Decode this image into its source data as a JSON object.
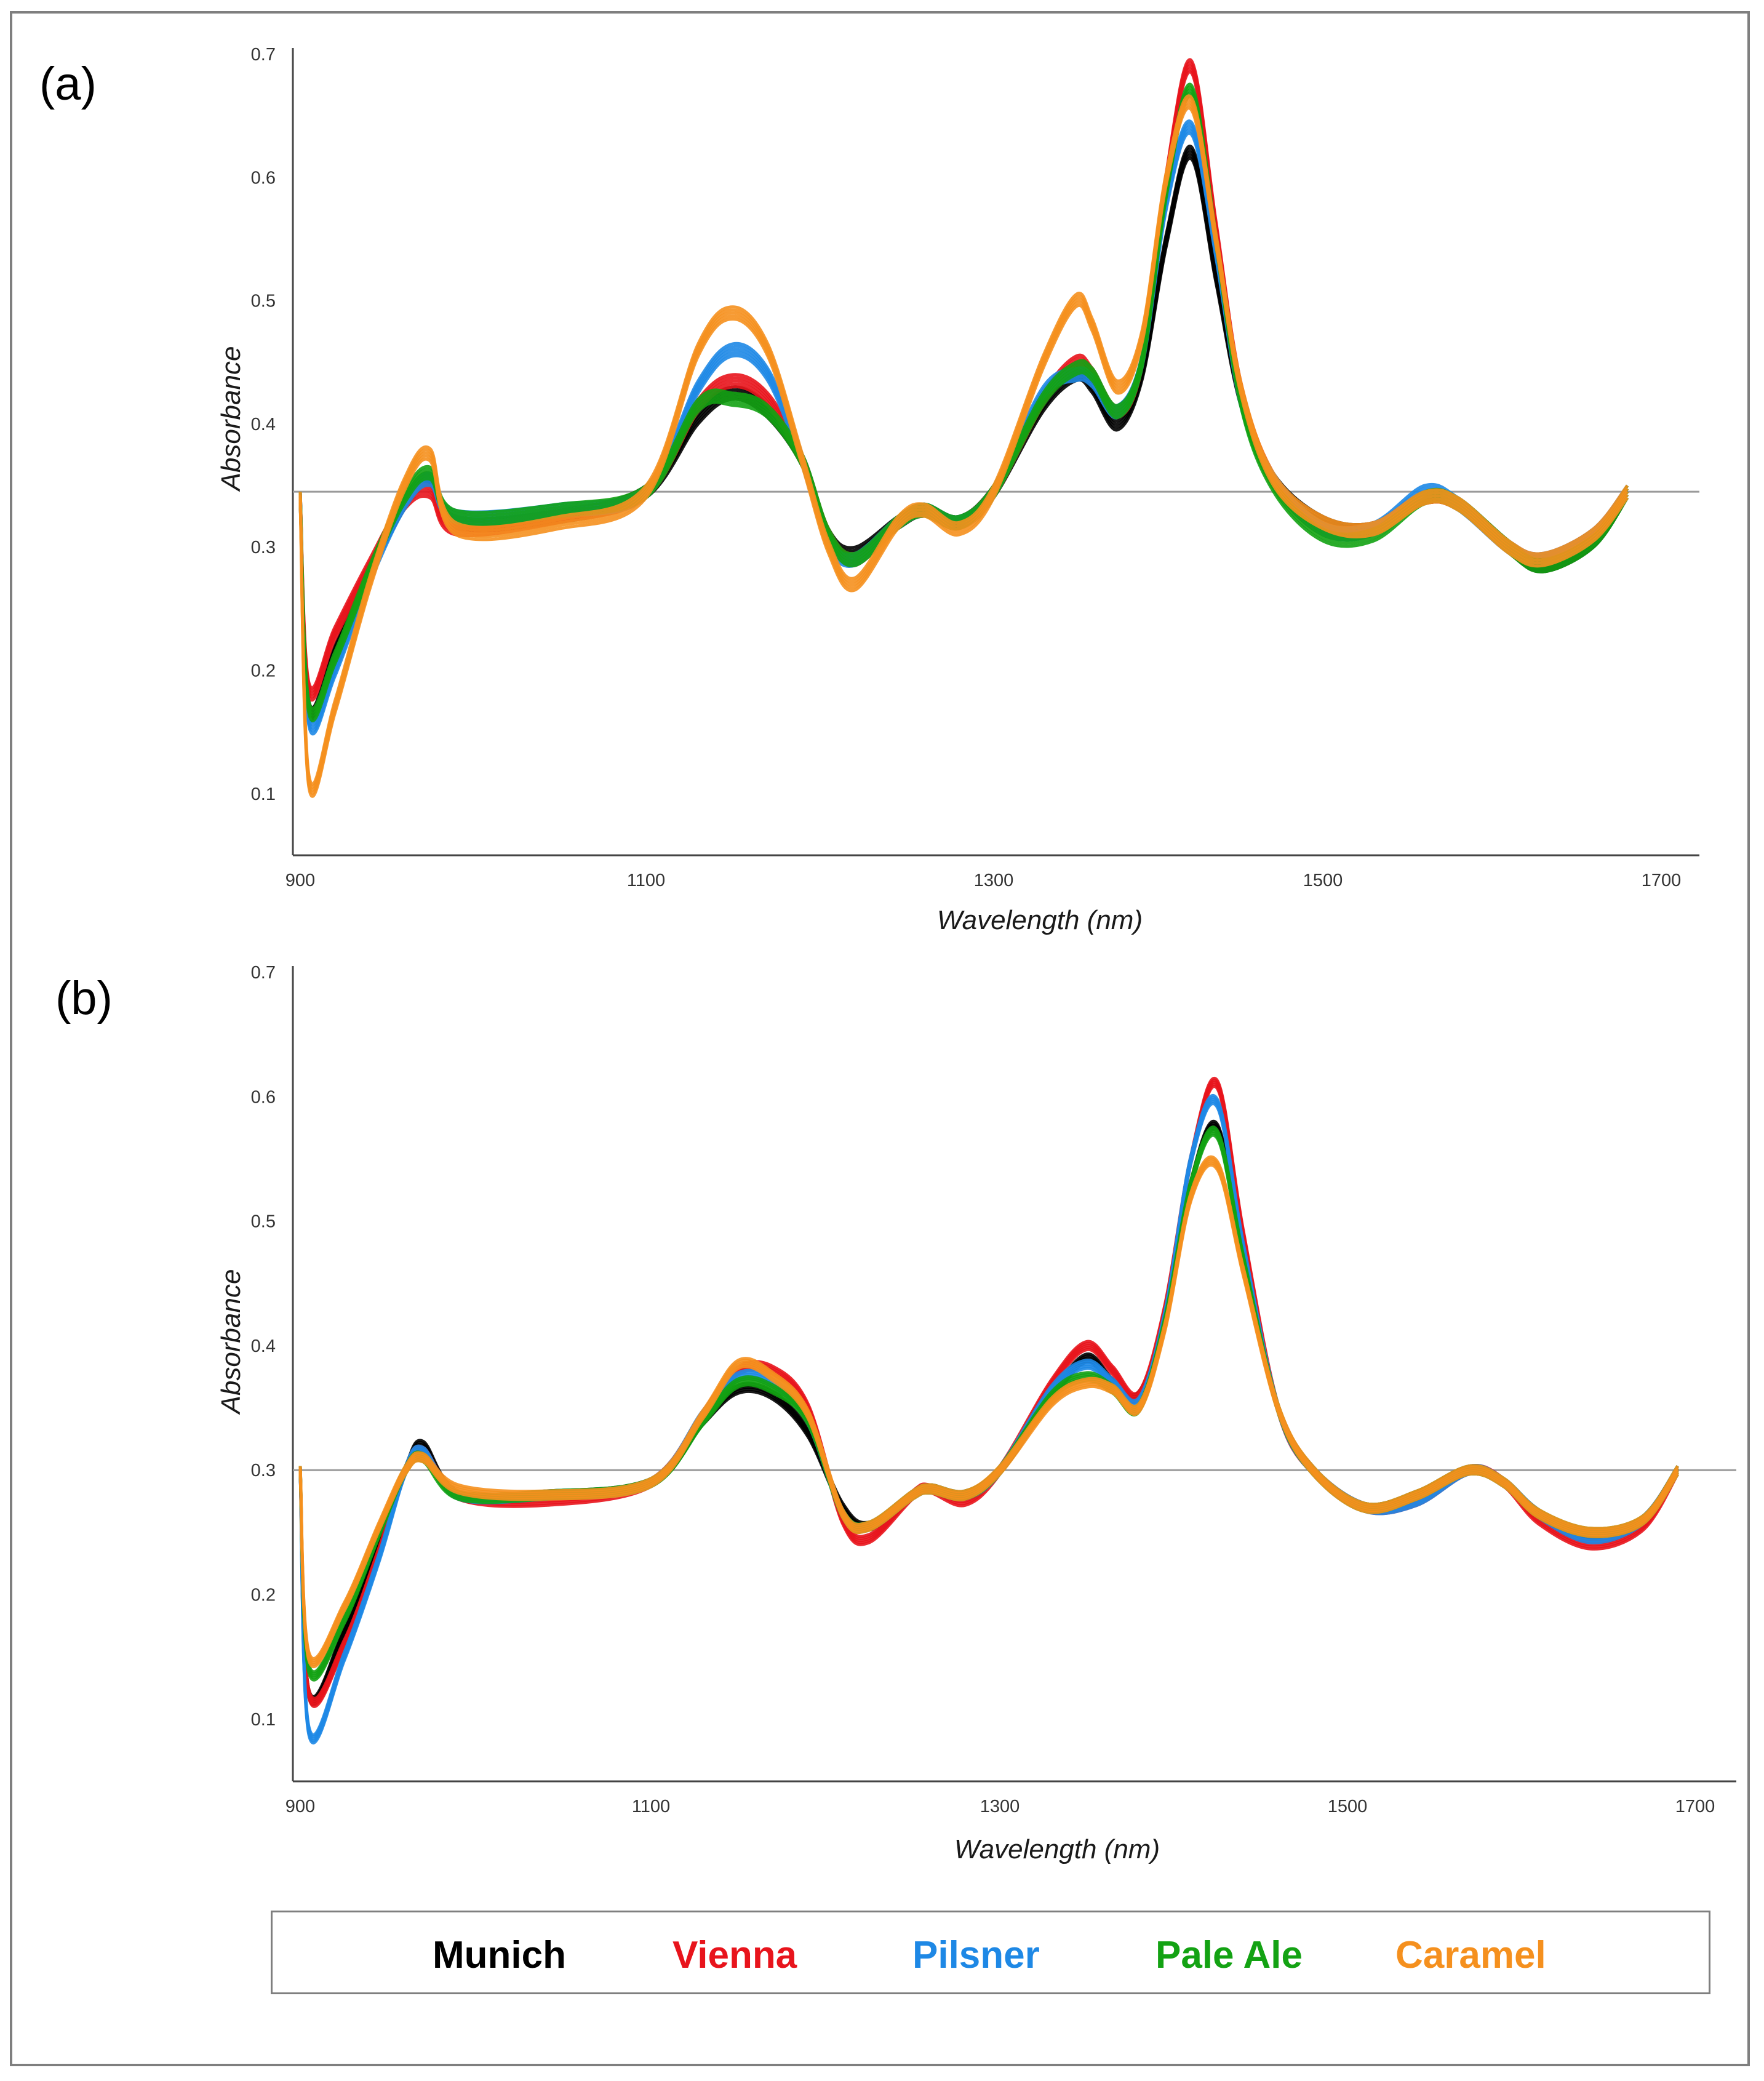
{
  "legend": {
    "entries": [
      {
        "name": "Munich",
        "color": "#000000"
      },
      {
        "name": "Vienna",
        "color": "#e8141c"
      },
      {
        "name": "Pilsner",
        "color": "#1e88e5"
      },
      {
        "name": "Pale Ale",
        "color": "#13a213"
      },
      {
        "name": "Caramel",
        "color": "#f5901e"
      }
    ]
  },
  "chart_data": [
    {
      "type": "line",
      "panel_label": "(a)",
      "xlabel": "Wavelength (nm)",
      "ylabel": "Absorbance",
      "xlim": [
        900,
        1700
      ],
      "ylim": [
        0.05,
        0.7
      ],
      "xticks": [
        "900",
        "1100",
        "1300",
        "1500",
        "1700"
      ],
      "yticks": [
        "0.1",
        "0.2",
        "0.3",
        "0.4",
        "0.5",
        "0.6",
        "0.7"
      ],
      "reference_line": 0.345,
      "series": [
        {
          "name": "Munich",
          "x": [
            900,
            905,
            920,
            940,
            960,
            975,
            990,
            1050,
            1100,
            1130,
            1150,
            1170,
            1190,
            1205,
            1220,
            1245,
            1260,
            1280,
            1300,
            1330,
            1350,
            1360,
            1375,
            1390,
            1405,
            1420,
            1435,
            1450,
            1470,
            1500,
            1530,
            1560,
            1580,
            1610,
            1630,
            1660,
            1680
          ],
          "y": [
            0.34,
            0.17,
            0.215,
            0.28,
            0.335,
            0.355,
            0.32,
            0.325,
            0.345,
            0.405,
            0.425,
            0.41,
            0.37,
            0.31,
            0.295,
            0.32,
            0.33,
            0.32,
            0.345,
            0.415,
            0.44,
            0.43,
            0.4,
            0.44,
            0.55,
            0.62,
            0.52,
            0.42,
            0.355,
            0.32,
            0.315,
            0.34,
            0.335,
            0.3,
            0.285,
            0.305,
            0.345
          ]
        },
        {
          "name": "Vienna",
          "x": [
            900,
            905,
            920,
            940,
            960,
            975,
            990,
            1050,
            1100,
            1130,
            1150,
            1170,
            1190,
            1205,
            1220,
            1245,
            1260,
            1280,
            1300,
            1330,
            1350,
            1360,
            1375,
            1390,
            1405,
            1420,
            1435,
            1450,
            1470,
            1500,
            1530,
            1560,
            1580,
            1610,
            1630,
            1660,
            1680
          ],
          "y": [
            0.34,
            0.185,
            0.23,
            0.285,
            0.335,
            0.345,
            0.315,
            0.325,
            0.345,
            0.415,
            0.435,
            0.42,
            0.37,
            0.31,
            0.29,
            0.32,
            0.33,
            0.32,
            0.345,
            0.42,
            0.45,
            0.44,
            0.41,
            0.45,
            0.6,
            0.69,
            0.56,
            0.43,
            0.355,
            0.315,
            0.315,
            0.34,
            0.335,
            0.3,
            0.29,
            0.31,
            0.345
          ]
        },
        {
          "name": "Pilsner",
          "x": [
            900,
            905,
            920,
            940,
            960,
            975,
            990,
            1050,
            1100,
            1130,
            1150,
            1170,
            1190,
            1205,
            1220,
            1245,
            1260,
            1280,
            1300,
            1330,
            1350,
            1360,
            1375,
            1390,
            1405,
            1420,
            1435,
            1450,
            1470,
            1500,
            1530,
            1560,
            1580,
            1610,
            1630,
            1660,
            1680
          ],
          "y": [
            0.34,
            0.16,
            0.2,
            0.275,
            0.335,
            0.355,
            0.325,
            0.33,
            0.345,
            0.43,
            0.46,
            0.44,
            0.37,
            0.305,
            0.29,
            0.32,
            0.33,
            0.32,
            0.345,
            0.425,
            0.44,
            0.435,
            0.41,
            0.45,
            0.58,
            0.64,
            0.54,
            0.42,
            0.355,
            0.315,
            0.315,
            0.345,
            0.335,
            0.3,
            0.29,
            0.31,
            0.345
          ]
        },
        {
          "name": "Pale Ale",
          "x": [
            900,
            905,
            920,
            940,
            960,
            975,
            990,
            1050,
            1100,
            1130,
            1150,
            1170,
            1190,
            1205,
            1220,
            1245,
            1260,
            1280,
            1300,
            1330,
            1350,
            1360,
            1375,
            1390,
            1405,
            1420,
            1435,
            1450,
            1470,
            1500,
            1530,
            1560,
            1580,
            1610,
            1630,
            1660,
            1680
          ],
          "y": [
            0.34,
            0.17,
            0.21,
            0.28,
            0.34,
            0.36,
            0.325,
            0.33,
            0.345,
            0.415,
            0.42,
            0.41,
            0.37,
            0.31,
            0.29,
            0.32,
            0.33,
            0.32,
            0.345,
            0.42,
            0.445,
            0.44,
            0.41,
            0.45,
            0.59,
            0.67,
            0.55,
            0.42,
            0.35,
            0.31,
            0.31,
            0.34,
            0.335,
            0.3,
            0.285,
            0.305,
            0.345
          ]
        },
        {
          "name": "Caramel",
          "x": [
            900,
            905,
            920,
            940,
            960,
            975,
            990,
            1050,
            1100,
            1130,
            1150,
            1170,
            1190,
            1205,
            1220,
            1245,
            1260,
            1280,
            1300,
            1330,
            1350,
            1360,
            1375,
            1390,
            1405,
            1420,
            1435,
            1450,
            1470,
            1500,
            1530,
            1560,
            1580,
            1610,
            1630,
            1660,
            1680
          ],
          "y": [
            0.34,
            0.11,
            0.17,
            0.27,
            0.35,
            0.375,
            0.315,
            0.32,
            0.345,
            0.46,
            0.49,
            0.46,
            0.37,
            0.3,
            0.27,
            0.32,
            0.33,
            0.315,
            0.345,
            0.45,
            0.5,
            0.48,
            0.43,
            0.47,
            0.6,
            0.66,
            0.55,
            0.43,
            0.355,
            0.32,
            0.315,
            0.34,
            0.335,
            0.3,
            0.29,
            0.31,
            0.345
          ]
        }
      ]
    },
    {
      "type": "line",
      "panel_label": "(b)",
      "xlabel": "Wavelength (nm)",
      "ylabel": "Absorbance",
      "xlim": [
        900,
        1700
      ],
      "ylim": [
        0.05,
        0.7
      ],
      "xticks": [
        "900",
        "1100",
        "1300",
        "1500",
        "1700"
      ],
      "yticks": [
        "0.1",
        "0.2",
        "0.3",
        "0.4",
        "0.5",
        "0.6",
        "0.7"
      ],
      "reference_line": 0.3,
      "series": [
        {
          "name": "Munich",
          "x": [
            900,
            905,
            925,
            945,
            960,
            970,
            990,
            1040,
            1100,
            1130,
            1150,
            1170,
            1190,
            1210,
            1225,
            1250,
            1260,
            1280,
            1300,
            1330,
            1350,
            1365,
            1380,
            1395,
            1410,
            1425,
            1440,
            1460,
            1480,
            1510,
            1540,
            1570,
            1590,
            1610,
            1640,
            1670,
            1690
          ],
          "y": [
            0.3,
            0.12,
            0.17,
            0.24,
            0.3,
            0.32,
            0.28,
            0.28,
            0.29,
            0.34,
            0.365,
            0.36,
            0.33,
            0.27,
            0.255,
            0.28,
            0.285,
            0.28,
            0.3,
            0.36,
            0.39,
            0.37,
            0.36,
            0.42,
            0.53,
            0.575,
            0.47,
            0.35,
            0.3,
            0.27,
            0.28,
            0.3,
            0.29,
            0.265,
            0.245,
            0.26,
            0.3
          ]
        },
        {
          "name": "Vienna",
          "x": [
            900,
            905,
            925,
            945,
            960,
            970,
            990,
            1040,
            1100,
            1130,
            1150,
            1170,
            1190,
            1210,
            1225,
            1250,
            1260,
            1280,
            1300,
            1330,
            1350,
            1365,
            1380,
            1395,
            1410,
            1425,
            1440,
            1460,
            1480,
            1510,
            1540,
            1570,
            1590,
            1610,
            1640,
            1670,
            1690
          ],
          "y": [
            0.3,
            0.12,
            0.16,
            0.235,
            0.3,
            0.315,
            0.28,
            0.275,
            0.29,
            0.345,
            0.38,
            0.38,
            0.35,
            0.26,
            0.245,
            0.28,
            0.285,
            0.275,
            0.3,
            0.37,
            0.4,
            0.38,
            0.36,
            0.43,
            0.55,
            0.61,
            0.49,
            0.35,
            0.3,
            0.27,
            0.275,
            0.3,
            0.29,
            0.26,
            0.24,
            0.255,
            0.3
          ]
        },
        {
          "name": "Pilsner",
          "x": [
            900,
            905,
            925,
            945,
            960,
            970,
            990,
            1040,
            1100,
            1130,
            1150,
            1170,
            1190,
            1210,
            1225,
            1250,
            1260,
            1280,
            1300,
            1330,
            1350,
            1365,
            1380,
            1395,
            1410,
            1425,
            1440,
            1460,
            1480,
            1510,
            1540,
            1570,
            1590,
            1610,
            1640,
            1670,
            1690
          ],
          "y": [
            0.3,
            0.09,
            0.15,
            0.23,
            0.3,
            0.315,
            0.28,
            0.28,
            0.29,
            0.345,
            0.375,
            0.37,
            0.34,
            0.265,
            0.255,
            0.28,
            0.285,
            0.28,
            0.3,
            0.365,
            0.385,
            0.37,
            0.355,
            0.425,
            0.55,
            0.595,
            0.48,
            0.35,
            0.3,
            0.27,
            0.275,
            0.3,
            0.29,
            0.265,
            0.245,
            0.26,
            0.3
          ]
        },
        {
          "name": "Pale Ale",
          "x": [
            900,
            905,
            925,
            945,
            960,
            970,
            990,
            1040,
            1100,
            1130,
            1150,
            1170,
            1190,
            1210,
            1225,
            1250,
            1260,
            1280,
            1300,
            1330,
            1350,
            1365,
            1380,
            1395,
            1410,
            1425,
            1440,
            1460,
            1480,
            1510,
            1540,
            1570,
            1590,
            1610,
            1640,
            1670,
            1690
          ],
          "y": [
            0.3,
            0.14,
            0.18,
            0.25,
            0.3,
            0.31,
            0.28,
            0.28,
            0.29,
            0.34,
            0.37,
            0.365,
            0.34,
            0.265,
            0.255,
            0.28,
            0.285,
            0.28,
            0.3,
            0.36,
            0.375,
            0.365,
            0.35,
            0.42,
            0.53,
            0.57,
            0.47,
            0.35,
            0.3,
            0.27,
            0.28,
            0.3,
            0.29,
            0.265,
            0.25,
            0.26,
            0.3
          ]
        },
        {
          "name": "Caramel",
          "x": [
            900,
            905,
            925,
            945,
            960,
            970,
            990,
            1040,
            1100,
            1130,
            1150,
            1170,
            1190,
            1210,
            1225,
            1250,
            1260,
            1280,
            1300,
            1330,
            1350,
            1365,
            1380,
            1395,
            1410,
            1425,
            1440,
            1460,
            1480,
            1510,
            1540,
            1570,
            1590,
            1610,
            1640,
            1670,
            1690
          ],
          "y": [
            0.3,
            0.15,
            0.19,
            0.255,
            0.3,
            0.31,
            0.285,
            0.28,
            0.29,
            0.345,
            0.385,
            0.375,
            0.345,
            0.265,
            0.255,
            0.28,
            0.285,
            0.28,
            0.3,
            0.355,
            0.37,
            0.365,
            0.35,
            0.415,
            0.52,
            0.545,
            0.46,
            0.35,
            0.3,
            0.27,
            0.28,
            0.3,
            0.29,
            0.265,
            0.25,
            0.26,
            0.3
          ]
        }
      ]
    }
  ]
}
